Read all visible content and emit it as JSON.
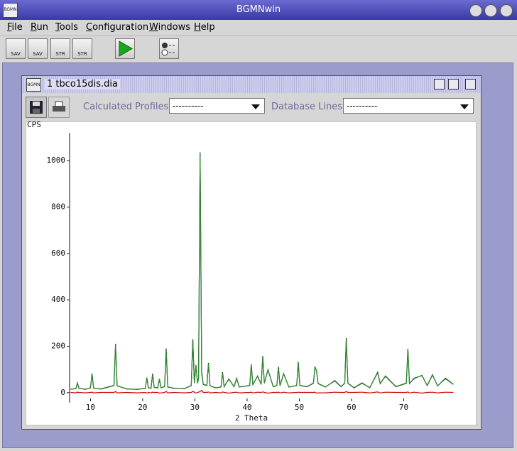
{
  "window": {
    "icon": "BGMN",
    "title": "BGMNwin"
  },
  "menu": [
    "File",
    "Run",
    "Tools",
    "Configuration",
    "Windows",
    "Help"
  ],
  "toolbar": [
    "SAV",
    "SAV",
    "STR",
    "STR"
  ],
  "document": {
    "icon": "BGMN",
    "title": "1 tbco15dis.dia",
    "calculated_profiles_label": "Calculated Profiles:",
    "calculated_profiles_value": "----------",
    "database_lines_label": "Database Lines:",
    "database_lines_value": "----------"
  },
  "chart_data": {
    "type": "line",
    "y_label": "CPS",
    "x_label": "2 Theta",
    "xlim": [
      6,
      80
    ],
    "ylim": [
      -25,
      1120
    ],
    "xticks": [
      10,
      20,
      30,
      40,
      50,
      60,
      70
    ],
    "yticks": [
      0,
      200,
      400,
      600,
      800,
      1000
    ],
    "x": [
      6.2,
      7.2,
      7.5,
      7.8,
      9,
      10,
      10.3,
      10.6,
      12,
      14.5,
      14.8,
      15.1,
      17,
      19,
      20.5,
      20.8,
      21.1,
      21.6,
      21.9,
      22.2,
      22.9,
      23.2,
      23.5,
      24.2,
      24.5,
      24.8,
      26,
      28,
      29.3,
      29.6,
      29.9,
      30.2,
      30.5,
      30.7,
      31.0,
      31.3,
      31.6,
      32.3,
      32.6,
      32.9,
      34,
      35.0,
      35.3,
      35.6,
      36.5,
      37.5,
      38,
      38.5,
      40.5,
      40.8,
      41.1,
      42.0,
      42.7,
      43.0,
      43.3,
      44.0,
      45,
      45.7,
      46.0,
      46.3,
      47.0,
      48,
      49.5,
      49.8,
      50.1,
      51.5,
      52.7,
      53.0,
      53.3,
      53.6,
      55,
      56.8,
      58,
      58.7,
      59.0,
      59.3,
      60.5,
      62,
      63.5,
      65.0,
      65.5,
      66.5,
      68.5,
      70.5,
      70.8,
      71.1,
      72,
      73.5,
      74.5,
      75.5,
      76.5,
      78,
      79.5
    ],
    "series": [
      {
        "color": "#1a1a1a",
        "values": [
          15,
          17,
          42,
          19,
          14,
          21,
          82,
          19,
          16,
          31,
          210,
          29,
          16,
          14,
          19,
          63,
          21,
          19,
          82,
          23,
          21,
          58,
          21,
          26,
          190,
          24,
          19,
          17,
          31,
          230,
          42,
          118,
          41,
          62,
          1035,
          90,
          36,
          31,
          128,
          29,
          21,
          24,
          88,
          26,
          58,
          26,
          62,
          24,
          31,
          122,
          34,
          72,
          36,
          158,
          41,
          98,
          26,
          31,
          112,
          29,
          82,
          24,
          31,
          132,
          31,
          26,
          41,
          112,
          93,
          39,
          24,
          52,
          26,
          41,
          235,
          41,
          21,
          42,
          21,
          88,
          39,
          72,
          26,
          41,
          188,
          39,
          62,
          73,
          31,
          77,
          29,
          62,
          36
        ]
      },
      {
        "color": "#2e8b2e",
        "values": [
          14,
          18,
          40,
          18,
          15,
          20,
          80,
          20,
          15,
          30,
          205,
          30,
          15,
          15,
          18,
          65,
          20,
          20,
          80,
          22,
          20,
          60,
          22,
          25,
          185,
          25,
          18,
          18,
          30,
          225,
          40,
          120,
          40,
          60,
          1030,
          80,
          35,
          30,
          125,
          30,
          20,
          25,
          85,
          25,
          60,
          25,
          60,
          25,
          30,
          120,
          35,
          70,
          35,
          155,
          40,
          100,
          25,
          30,
          110,
          30,
          80,
          25,
          30,
          130,
          30,
          25,
          40,
          110,
          95,
          40,
          25,
          50,
          25,
          40,
          230,
          40,
          20,
          40,
          22,
          85,
          40,
          70,
          25,
          40,
          185,
          40,
          60,
          75,
          30,
          75,
          30,
          60,
          35
        ]
      },
      {
        "color": "#cc0000",
        "values": [
          1,
          -1,
          2,
          1,
          -1,
          1,
          2,
          -1,
          1,
          1,
          5,
          -1,
          1,
          -1,
          1,
          -2,
          1,
          -1,
          2,
          1,
          1,
          -2,
          -1,
          1,
          5,
          -1,
          1,
          -1,
          1,
          5,
          2,
          -2,
          1,
          2,
          5,
          10,
          1,
          1,
          3,
          -1,
          1,
          -1,
          3,
          1,
          -2,
          1,
          2,
          -1,
          1,
          2,
          -1,
          2,
          1,
          3,
          1,
          -2,
          1,
          1,
          2,
          -1,
          2,
          -1,
          1,
          2,
          1,
          1,
          1,
          2,
          -2,
          -1,
          -1,
          2,
          1,
          1,
          5,
          1,
          1,
          2,
          -1,
          3,
          -1,
          2,
          1,
          1,
          3,
          -1,
          2,
          -2,
          1,
          2,
          -1,
          2,
          1
        ]
      }
    ]
  }
}
